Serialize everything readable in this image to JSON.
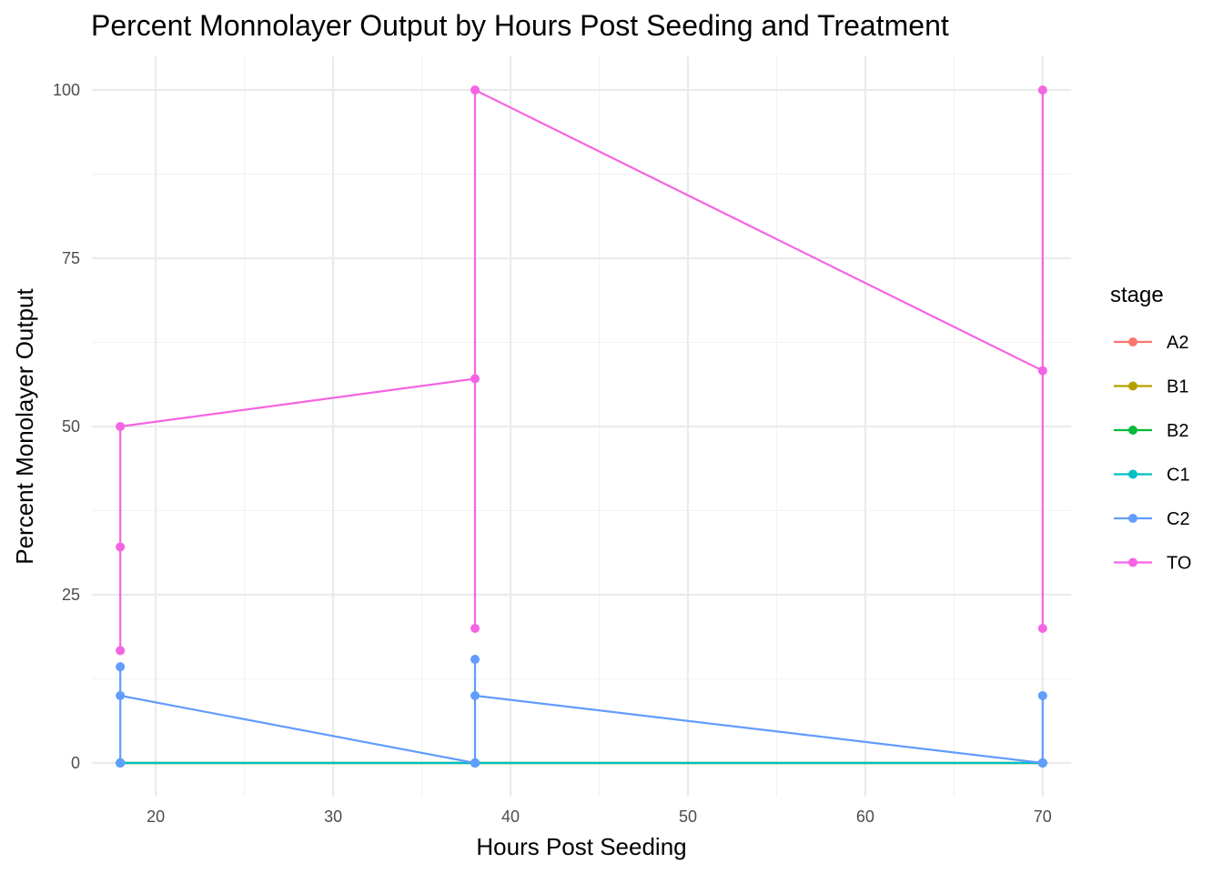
{
  "chart_data": {
    "type": "line",
    "title": "Percent Monnolayer Output by Hours Post Seeding and Treatment",
    "xlabel": "Hours Post Seeding",
    "ylabel": "Percent Monolayer Output",
    "xlim": [
      16.4,
      71.6
    ],
    "ylim": [
      -5,
      105
    ],
    "x_ticks": [
      20,
      30,
      40,
      50,
      60,
      70
    ],
    "x_tick_labels": [
      "20",
      "30",
      "40",
      "50",
      "60",
      "70"
    ],
    "y_ticks": [
      0,
      25,
      50,
      75,
      100
    ],
    "y_tick_labels": [
      "0",
      "25",
      "50",
      "75",
      "100"
    ],
    "grid": true,
    "legend": {
      "title": "stage",
      "placement": "right"
    },
    "series": [
      {
        "name": "A2",
        "color": "#F8766D",
        "points": [
          [
            18,
            0
          ],
          [
            18,
            0
          ],
          [
            38,
            0
          ],
          [
            38,
            0
          ],
          [
            70,
            0
          ],
          [
            70,
            0
          ]
        ]
      },
      {
        "name": "B1",
        "color": "#B79F00",
        "points": [
          [
            18,
            0
          ],
          [
            18,
            0
          ],
          [
            38,
            0
          ],
          [
            38,
            0
          ],
          [
            70,
            0
          ],
          [
            70,
            0
          ]
        ]
      },
      {
        "name": "B2",
        "color": "#00BA38",
        "points": [
          [
            18,
            0
          ],
          [
            18,
            0
          ],
          [
            38,
            0
          ],
          [
            38,
            0
          ],
          [
            70,
            0
          ],
          [
            70,
            0
          ]
        ]
      },
      {
        "name": "C1",
        "color": "#00BFC4",
        "points": [
          [
            18,
            0
          ],
          [
            18,
            0
          ],
          [
            38,
            0
          ],
          [
            38,
            0
          ],
          [
            70,
            0
          ],
          [
            70,
            0
          ]
        ]
      },
      {
        "name": "C2",
        "color": "#619CFF",
        "points": [
          [
            18,
            0
          ],
          [
            18,
            14.3
          ],
          [
            18,
            10
          ],
          [
            38,
            0
          ],
          [
            38,
            15.4
          ],
          [
            38,
            10
          ],
          [
            70,
            0
          ],
          [
            70,
            10
          ]
        ]
      },
      {
        "name": "TO",
        "color": "#F564E3",
        "points": [
          [
            18,
            16.7
          ],
          [
            18,
            32.1
          ],
          [
            18,
            50
          ],
          [
            38,
            57.1
          ],
          [
            38,
            20
          ],
          [
            38,
            100
          ],
          [
            70,
            58.3
          ],
          [
            70,
            100
          ],
          [
            70,
            20
          ]
        ]
      }
    ]
  }
}
